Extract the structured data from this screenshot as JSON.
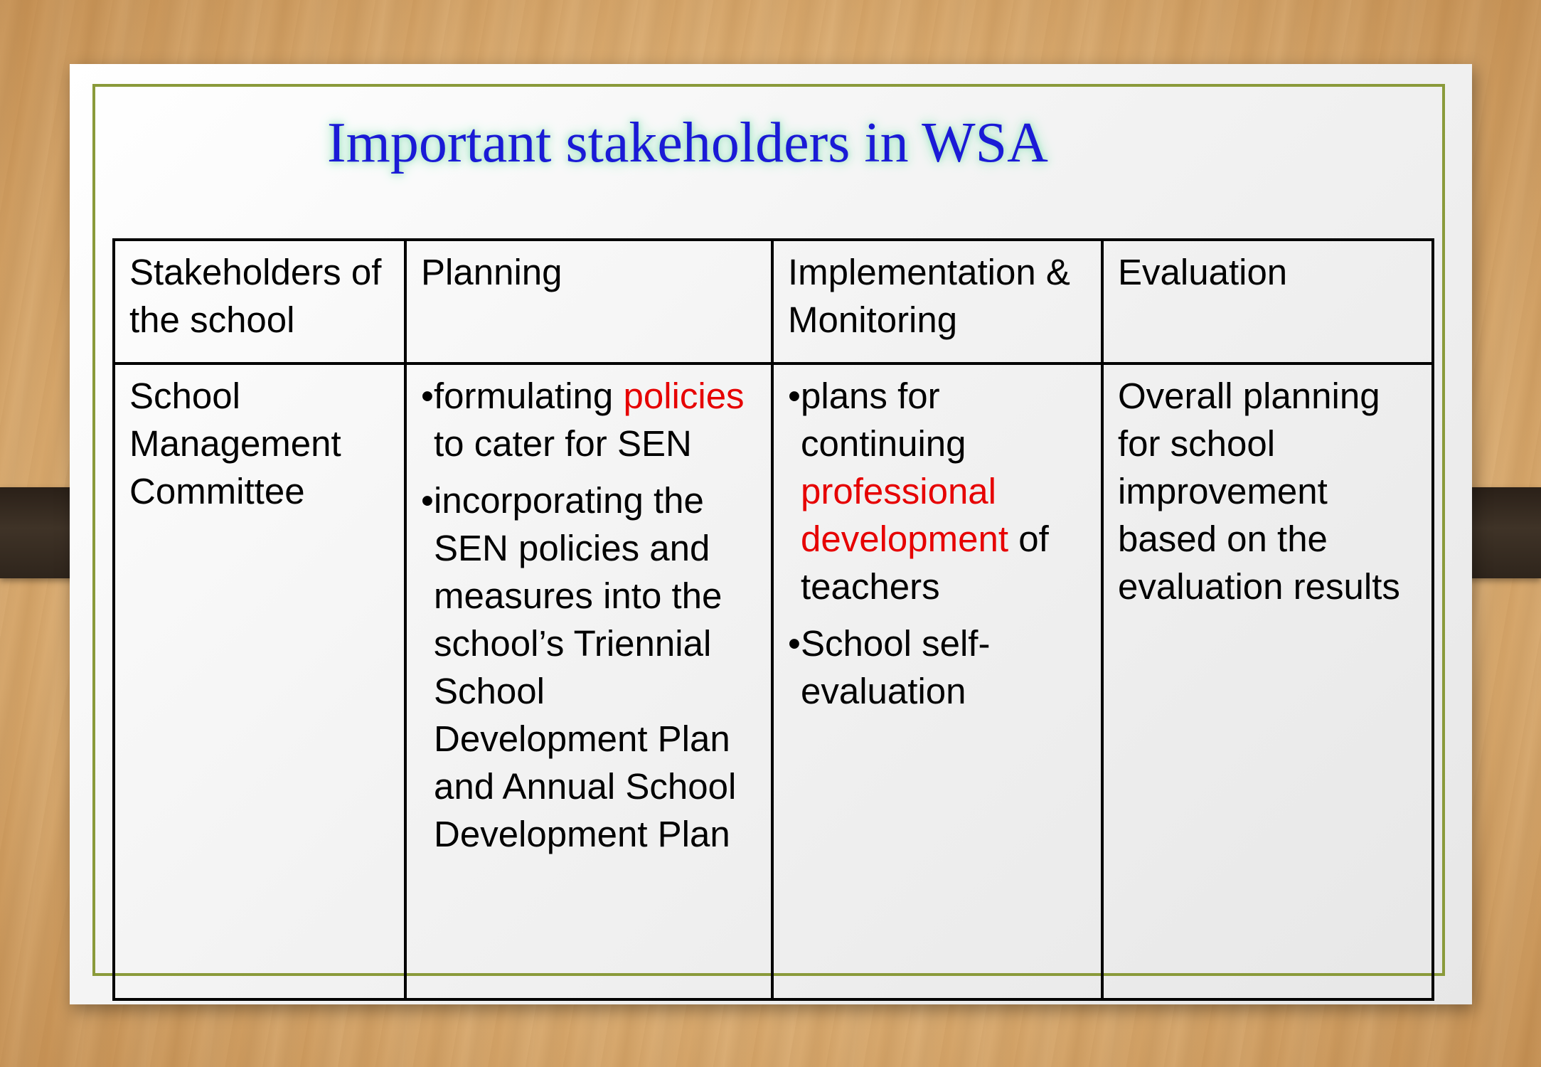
{
  "slide": {
    "title": "Important stakeholders in WSA"
  },
  "table": {
    "headers": [
      "Stakeholders of the school",
      "Planning",
      "Implementation & Monitoring",
      "Evaluation"
    ],
    "row": {
      "stakeholder": "School Management Committee",
      "planning": {
        "bullet_char": "•",
        "item1_pre": "formulating ",
        "item1_highlight": "policies",
        "item1_post": " to cater for SEN",
        "item2": "incorporating the SEN policies and measures into the school’s Triennial School Development Plan and Annual School Development Plan"
      },
      "implementation": {
        "bullet_char": "•",
        "item1_pre": "plans for continuing ",
        "item1_highlight": "professional development",
        "item1_post": " of teachers",
        "item2": "School self-evaluation"
      },
      "evaluation": "Overall planning for school improvement based on the evaluation results"
    }
  },
  "colors": {
    "title": "#1a1ad6",
    "highlight": "#e60000",
    "frame_border": "#8a9a3a"
  }
}
